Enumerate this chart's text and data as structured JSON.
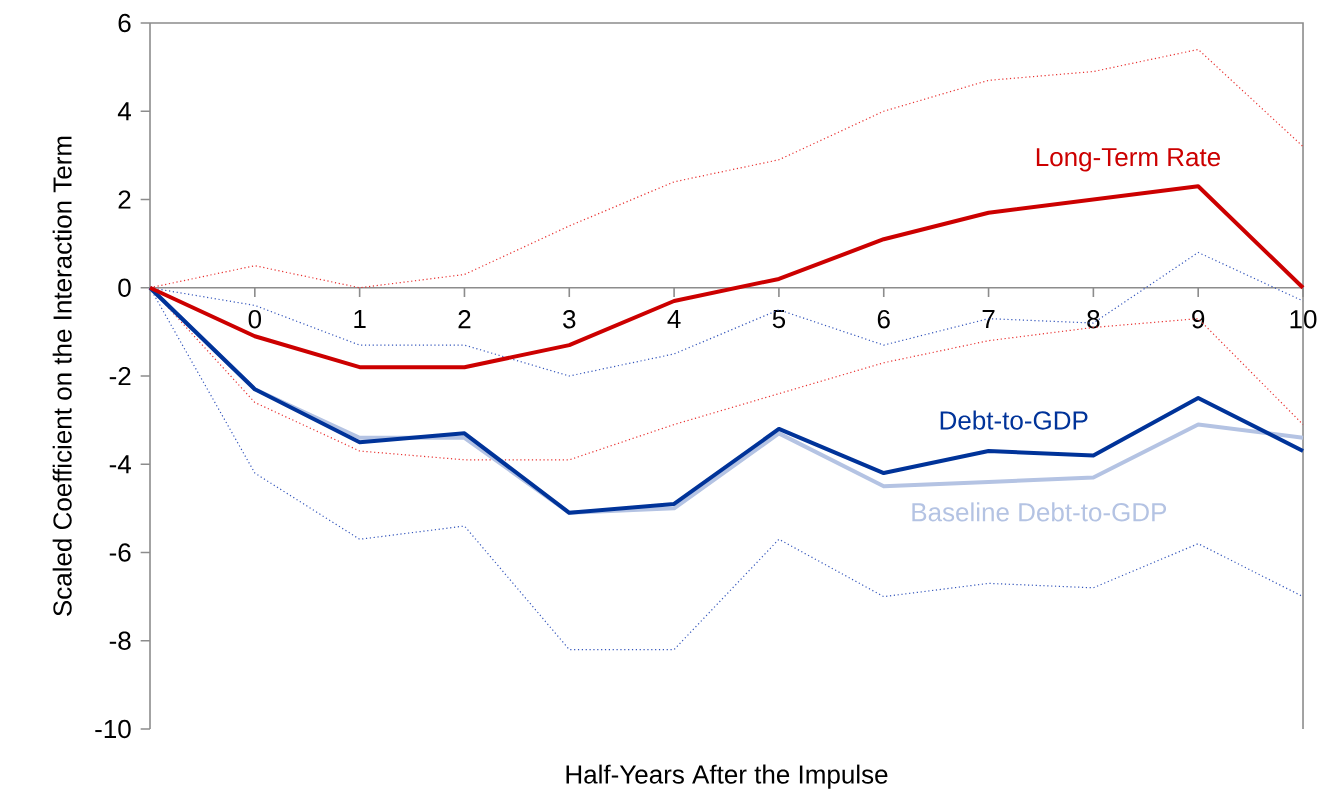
{
  "chart_data": {
    "type": "line",
    "xlabel": "Half-Years After the Impulse",
    "ylabel": "Scaled Coefficient on the Interaction Term",
    "x": [
      -1,
      0,
      1,
      2,
      3,
      4,
      5,
      6,
      7,
      8,
      9,
      10
    ],
    "xlim": [
      -1,
      10
    ],
    "xticks": [
      0,
      1,
      2,
      3,
      4,
      5,
      6,
      7,
      8,
      9,
      10
    ],
    "ylim": [
      -10,
      6
    ],
    "yticks": [
      -10,
      -8,
      -6,
      -4,
      -2,
      0,
      2,
      4,
      6
    ],
    "series": [
      {
        "color": "#e8302f",
        "line_style": "dotted",
        "values": [
          0,
          0.5,
          0.0,
          0.3,
          1.4,
          2.4,
          2.9,
          4.0,
          4.7,
          4.9,
          5.4,
          3.2
        ]
      },
      {
        "color": "#e8302f",
        "line_style": "dotted",
        "values": [
          0,
          -2.6,
          -3.7,
          -3.9,
          -3.9,
          -3.1,
          -2.4,
          -1.7,
          -1.2,
          -0.9,
          -0.7,
          -3.1
        ]
      },
      {
        "color": "#3355bb",
        "line_style": "dotted",
        "values": [
          0,
          -0.4,
          -1.3,
          -1.3,
          -2.0,
          -1.5,
          -0.5,
          -1.3,
          -0.7,
          -0.8,
          0.8,
          -0.3
        ]
      },
      {
        "color": "#3355bb",
        "line_style": "dotted",
        "values": [
          0,
          -4.2,
          -5.7,
          -5.4,
          -8.2,
          -8.2,
          -5.7,
          -7.0,
          -6.7,
          -6.8,
          -5.8,
          -7.0
        ]
      },
      {
        "name": "Baseline Debt-to-GDP",
        "color": "#b4c3e3",
        "line_style": "solid",
        "values": [
          0,
          -2.3,
          -3.4,
          -3.4,
          -5.1,
          -5.0,
          -3.3,
          -4.5,
          -4.4,
          -4.3,
          -3.1,
          -3.4
        ]
      },
      {
        "name": "Debt-to-GDP",
        "color": "#003399",
        "line_style": "solid",
        "values": [
          0,
          -2.3,
          -3.5,
          -3.3,
          -5.1,
          -4.9,
          -3.2,
          -4.2,
          -3.7,
          -3.8,
          -2.5,
          -3.7
        ]
      },
      {
        "name": "Long-Term Rate",
        "color": "#cc0000",
        "line_style": "solid",
        "values": [
          0,
          -1.1,
          -1.8,
          -1.8,
          -1.3,
          -0.3,
          0.2,
          1.1,
          1.7,
          2.0,
          2.3,
          0.0
        ]
      }
    ]
  }
}
